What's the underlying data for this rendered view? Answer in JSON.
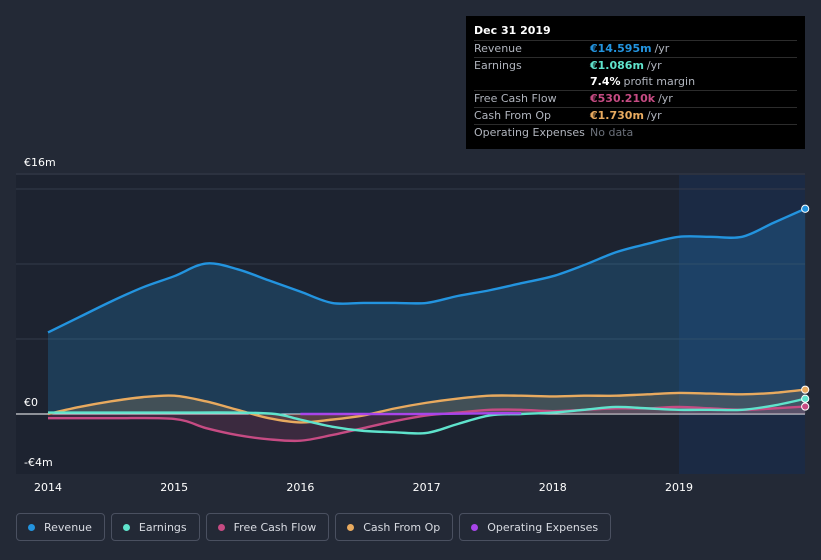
{
  "chart_data": {
    "type": "line",
    "title": "",
    "xlabel": "",
    "ylabel": "",
    "xlim": [
      2014,
      2020
    ],
    "ylim": [
      -4,
      16
    ],
    "x_ticks": [
      2014,
      2015,
      2016,
      2017,
      2018,
      2019
    ],
    "x_tick_labels": [
      "2014",
      "2015",
      "2016",
      "2017",
      "2018",
      "2019"
    ],
    "y_tick_labels": [
      "€16m",
      "€0",
      "-€4m"
    ],
    "forecast_region_start": 2019,
    "series": [
      {
        "name": "Revenue",
        "color": "#2394df",
        "area": true,
        "points": [
          [
            2014.0,
            5.8
          ],
          [
            2014.25,
            6.9
          ],
          [
            2014.5,
            8.0
          ],
          [
            2014.75,
            9.0
          ],
          [
            2015.0,
            9.8
          ],
          [
            2015.25,
            10.7
          ],
          [
            2015.5,
            10.3
          ],
          [
            2015.75,
            9.5
          ],
          [
            2016.0,
            8.7
          ],
          [
            2016.25,
            7.9
          ],
          [
            2016.5,
            7.9
          ],
          [
            2016.75,
            7.9
          ],
          [
            2017.0,
            7.9
          ],
          [
            2017.25,
            8.4
          ],
          [
            2017.5,
            8.8
          ],
          [
            2017.75,
            9.3
          ],
          [
            2018.0,
            9.8
          ],
          [
            2018.25,
            10.6
          ],
          [
            2018.5,
            11.5
          ],
          [
            2018.75,
            12.1
          ],
          [
            2019.0,
            12.6
          ],
          [
            2019.25,
            12.6
          ],
          [
            2019.5,
            12.6
          ],
          [
            2019.75,
            13.6
          ],
          [
            2020.0,
            14.595
          ]
        ]
      },
      {
        "name": "Earnings",
        "color": "#5fe3cc",
        "area": false,
        "points": [
          [
            2014.0,
            0.1
          ],
          [
            2014.5,
            0.1
          ],
          [
            2015.0,
            0.1
          ],
          [
            2015.5,
            0.1
          ],
          [
            2015.8,
            0.0
          ],
          [
            2016.0,
            -0.4
          ],
          [
            2016.25,
            -0.9
          ],
          [
            2016.5,
            -1.2
          ],
          [
            2016.75,
            -1.3
          ],
          [
            2017.0,
            -1.35
          ],
          [
            2017.25,
            -0.7
          ],
          [
            2017.5,
            -0.1
          ],
          [
            2017.75,
            0.0
          ],
          [
            2018.0,
            0.1
          ],
          [
            2018.25,
            0.3
          ],
          [
            2018.5,
            0.5
          ],
          [
            2018.75,
            0.4
          ],
          [
            2019.0,
            0.3
          ],
          [
            2019.25,
            0.3
          ],
          [
            2019.5,
            0.3
          ],
          [
            2019.75,
            0.6
          ],
          [
            2020.0,
            1.086
          ]
        ]
      },
      {
        "name": "Free Cash Flow",
        "color": "#c64b83",
        "area": true,
        "points": [
          [
            2014.0,
            -0.3
          ],
          [
            2014.5,
            -0.3
          ],
          [
            2015.0,
            -0.35
          ],
          [
            2015.25,
            -1.0
          ],
          [
            2015.5,
            -1.5
          ],
          [
            2015.75,
            -1.8
          ],
          [
            2016.0,
            -1.9
          ],
          [
            2016.25,
            -1.5
          ],
          [
            2016.5,
            -1.0
          ],
          [
            2016.75,
            -0.5
          ],
          [
            2017.0,
            -0.1
          ],
          [
            2017.25,
            0.1
          ],
          [
            2017.5,
            0.3
          ],
          [
            2017.75,
            0.3
          ],
          [
            2018.0,
            0.2
          ],
          [
            2018.25,
            0.3
          ],
          [
            2018.5,
            0.4
          ],
          [
            2018.75,
            0.4
          ],
          [
            2019.0,
            0.5
          ],
          [
            2019.25,
            0.4
          ],
          [
            2019.5,
            0.3
          ],
          [
            2019.75,
            0.4
          ],
          [
            2020.0,
            0.53021
          ]
        ]
      },
      {
        "name": "Cash From Op",
        "color": "#e8aa5f",
        "area": true,
        "points": [
          [
            2014.0,
            0.0
          ],
          [
            2014.25,
            0.5
          ],
          [
            2014.5,
            0.9
          ],
          [
            2014.75,
            1.2
          ],
          [
            2015.0,
            1.3
          ],
          [
            2015.25,
            0.9
          ],
          [
            2015.5,
            0.3
          ],
          [
            2015.75,
            -0.3
          ],
          [
            2016.0,
            -0.6
          ],
          [
            2016.25,
            -0.4
          ],
          [
            2016.5,
            -0.1
          ],
          [
            2016.75,
            0.4
          ],
          [
            2017.0,
            0.8
          ],
          [
            2017.25,
            1.1
          ],
          [
            2017.5,
            1.3
          ],
          [
            2017.75,
            1.3
          ],
          [
            2018.0,
            1.25
          ],
          [
            2018.25,
            1.3
          ],
          [
            2018.5,
            1.3
          ],
          [
            2018.75,
            1.4
          ],
          [
            2019.0,
            1.5
          ],
          [
            2019.25,
            1.45
          ],
          [
            2019.5,
            1.4
          ],
          [
            2019.75,
            1.5
          ],
          [
            2020.0,
            1.73
          ]
        ]
      },
      {
        "name": "Operating Expenses",
        "color": "#a845ea",
        "area": false,
        "points": [
          [
            2016.0,
            0.0
          ],
          [
            2016.5,
            0.0
          ],
          [
            2017.0,
            0.0
          ],
          [
            2017.5,
            0.05
          ],
          [
            2017.75,
            0.05
          ]
        ]
      }
    ]
  },
  "tooltip": {
    "date": "Dec 31 2019",
    "rows": [
      {
        "label": "Revenue",
        "value": "€14.595m",
        "unit": "/yr",
        "color": "#2394df"
      },
      {
        "label": "Earnings",
        "value": "€1.086m",
        "unit": "/yr",
        "color": "#5fe3cc"
      },
      {
        "label": "",
        "value": "7.4%",
        "unit": "profit margin",
        "color": "#ffffff"
      },
      {
        "label": "Free Cash Flow",
        "value": "€530.210k",
        "unit": "/yr",
        "color": "#c64b83"
      },
      {
        "label": "Cash From Op",
        "value": "€1.730m",
        "unit": "/yr",
        "color": "#e8aa5f"
      },
      {
        "label": "Operating Expenses",
        "value": "No data",
        "unit": "",
        "color": "#6b707a"
      }
    ]
  },
  "legend": [
    {
      "label": "Revenue",
      "color": "#2394df"
    },
    {
      "label": "Earnings",
      "color": "#5fe3cc"
    },
    {
      "label": "Free Cash Flow",
      "color": "#c64b83"
    },
    {
      "label": "Cash From Op",
      "color": "#e8aa5f"
    },
    {
      "label": "Operating Expenses",
      "color": "#a845ea"
    }
  ]
}
